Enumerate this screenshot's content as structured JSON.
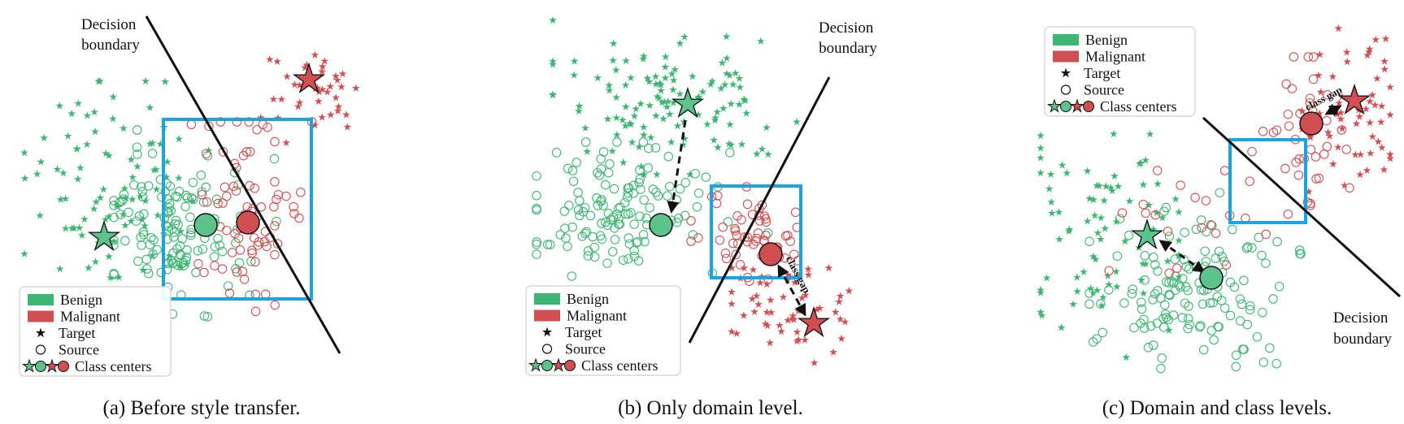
{
  "colors": {
    "benign": "#3fb573",
    "malignant": "#d14f52",
    "roi_box": "#1aa4e0",
    "boundary": "#111111"
  },
  "legend": {
    "benign": "Benign",
    "malignant": "Malignant",
    "target": "Target",
    "source": "Source",
    "class_centers": "Class centers"
  },
  "panels": [
    {
      "id": "a",
      "caption": "(a) Before style transfer.",
      "boundary_label": [
        "Decision",
        "boundary"
      ]
    },
    {
      "id": "b",
      "caption": "(b) Only domain level.",
      "boundary_label": [
        "Decision",
        "boundary"
      ],
      "gap_label": "class gap"
    },
    {
      "id": "c",
      "caption": "(c) Domain and class levels.",
      "boundary_label": [
        "Decision",
        "boundary"
      ],
      "gap_label": "class gap"
    }
  ]
}
